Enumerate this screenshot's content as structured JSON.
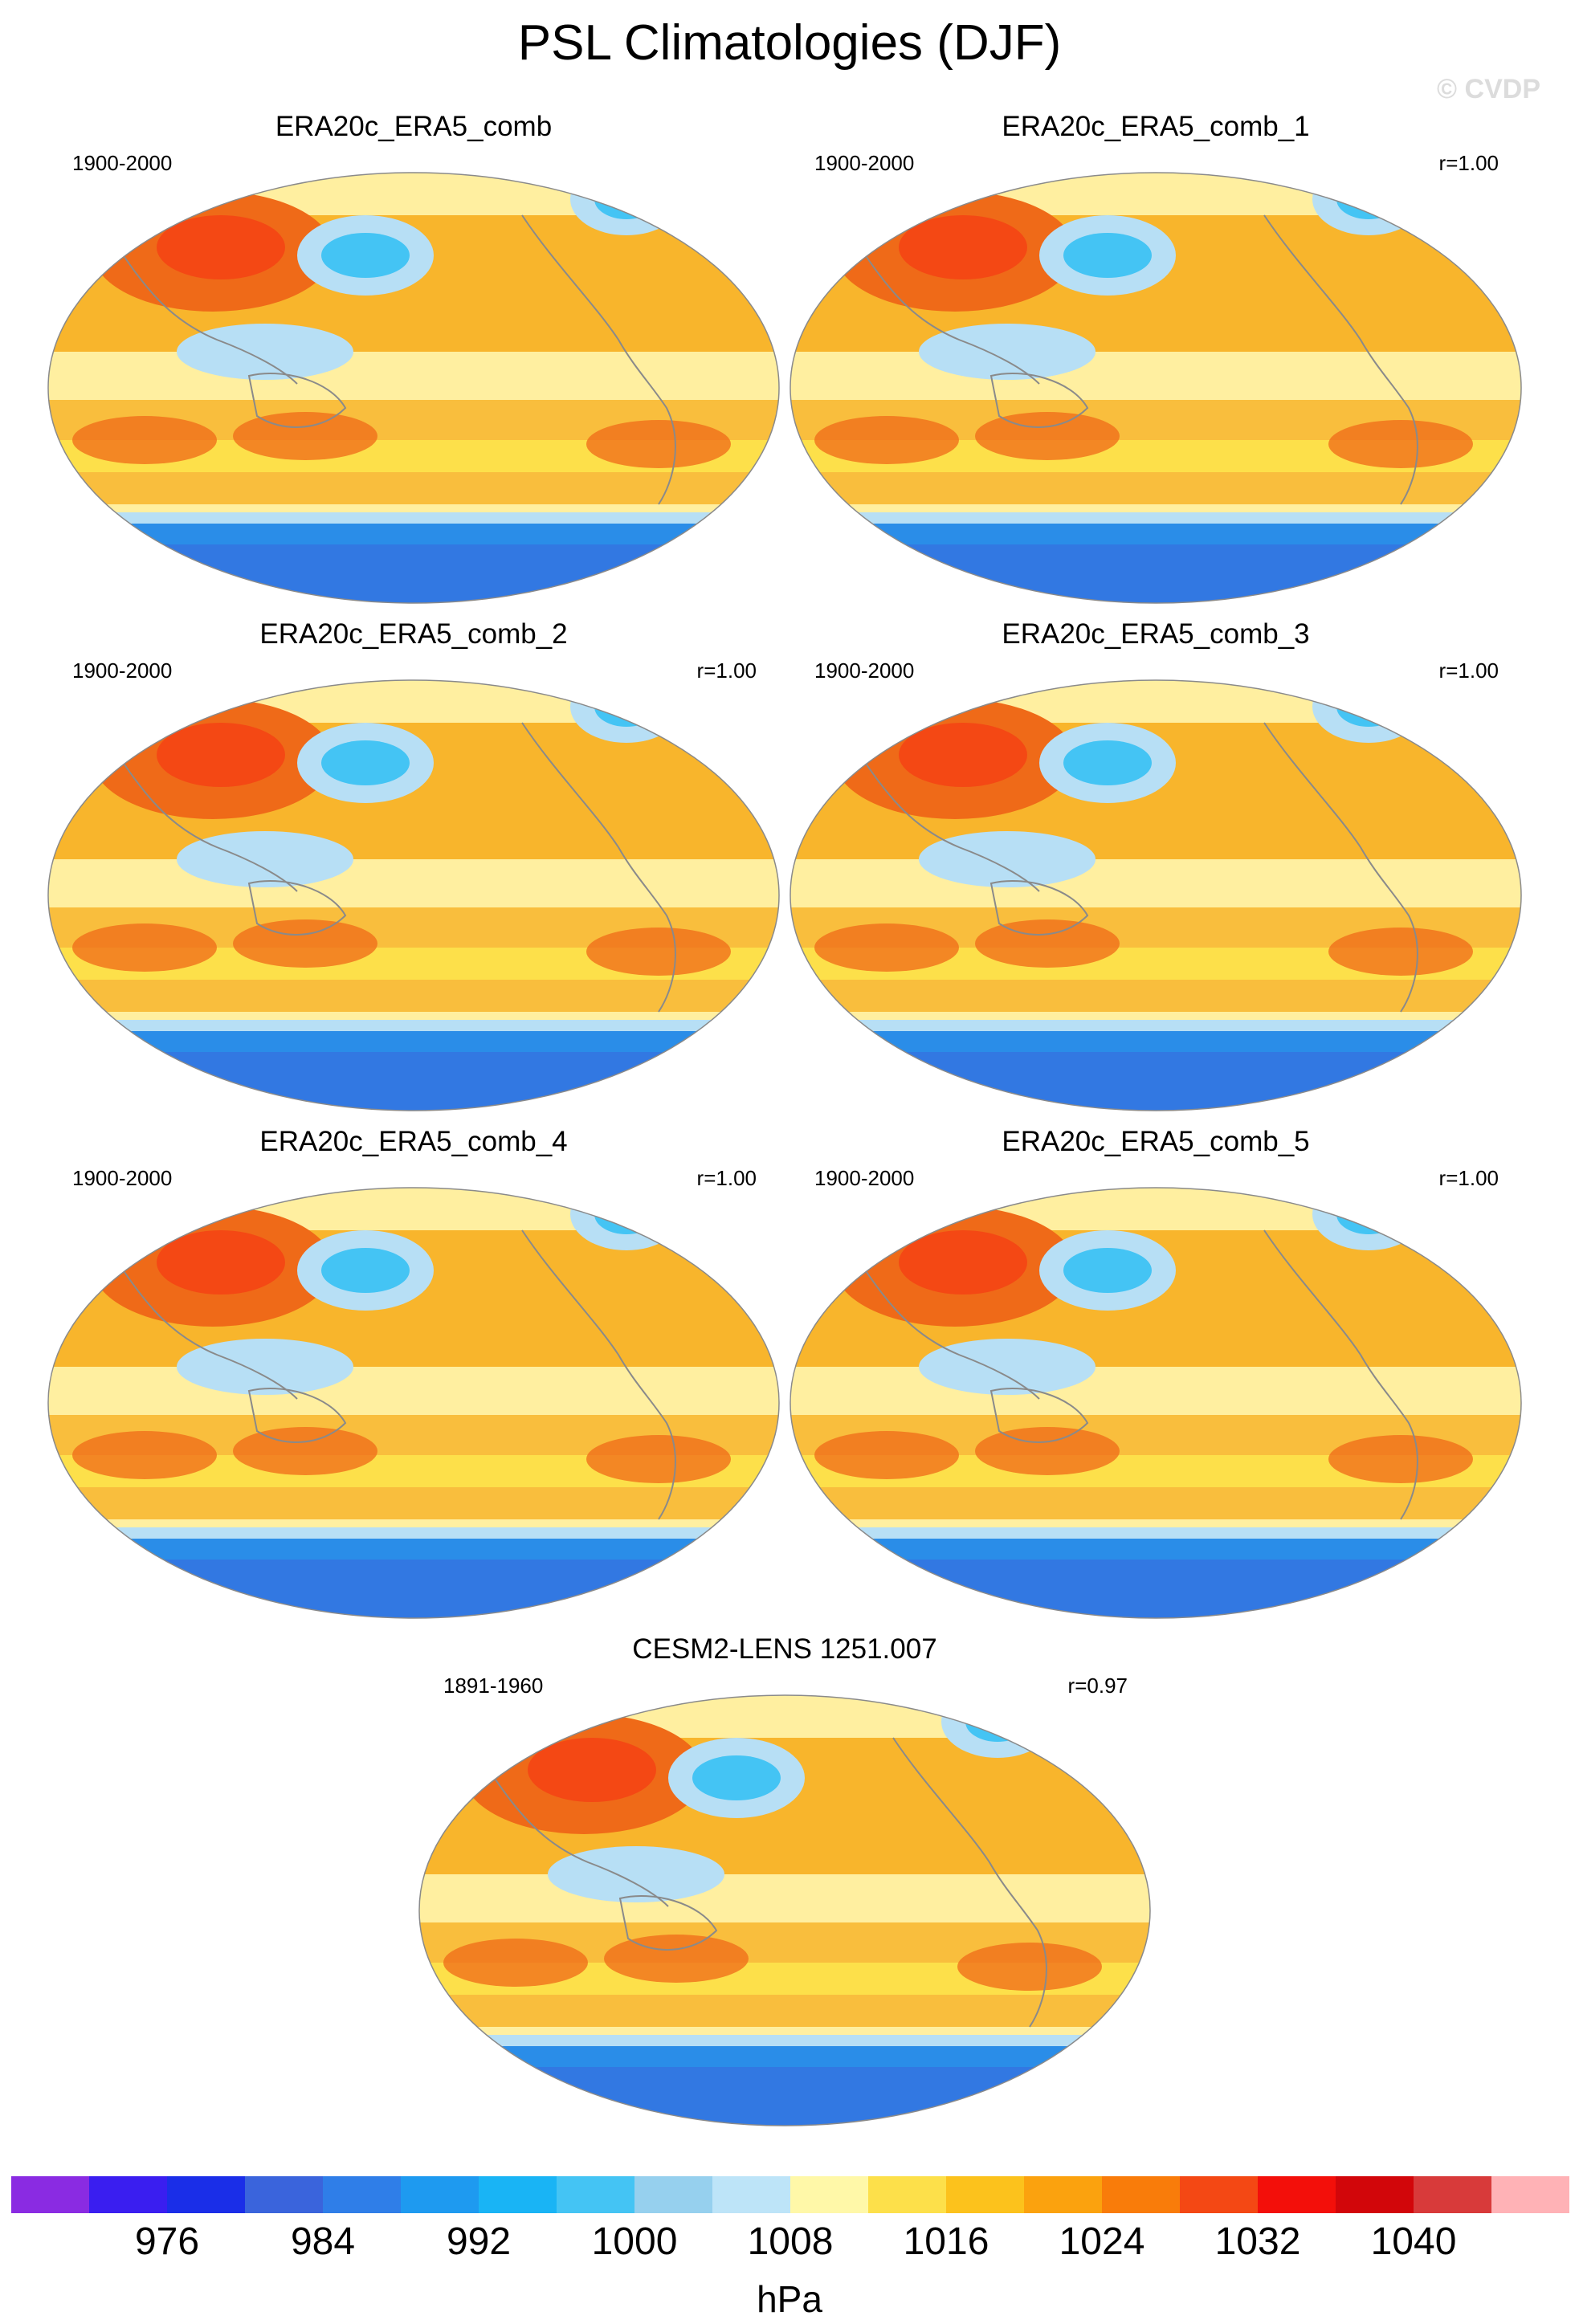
{
  "page_title": "PSL Climatologies (DJF)",
  "watermark": "© CVDP",
  "colors": {
    "ocean_low": "#b7dff5",
    "ocean_mid": "#ffefa0",
    "high": "#f8b52c",
    "very_high": "#ef6a18",
    "antarctic": "#2a8de8",
    "coast": "#8a8a8a"
  },
  "panels": [
    {
      "title": "ERA20c_ERA5_comb",
      "period": "1900-2000",
      "corr": ""
    },
    {
      "title": "ERA20c_ERA5_comb_1",
      "period": "1900-2000",
      "corr": "r=1.00"
    },
    {
      "title": "ERA20c_ERA5_comb_2",
      "period": "1900-2000",
      "corr": "r=1.00"
    },
    {
      "title": "ERA20c_ERA5_comb_3",
      "period": "1900-2000",
      "corr": "r=1.00"
    },
    {
      "title": "ERA20c_ERA5_comb_4",
      "period": "1900-2000",
      "corr": "r=1.00"
    },
    {
      "title": "ERA20c_ERA5_comb_5",
      "period": "1900-2000",
      "corr": "r=1.00"
    },
    {
      "title": "CESM2-LENS 1251.007",
      "period": "1891-1960",
      "corr": "r=0.97"
    }
  ],
  "colorbar": {
    "units": "hPa",
    "tick_labels": [
      "976",
      "984",
      "992",
      "1000",
      "1008",
      "1016",
      "1024",
      "1032",
      "1040"
    ],
    "colors": [
      "#8a2be2",
      "#3a1ef0",
      "#1a2ee8",
      "#3a64dc",
      "#2f7ee8",
      "#1e9af0",
      "#19b4f5",
      "#44c4f4",
      "#96d0ee",
      "#bde4f8",
      "#fff8a8",
      "#fde04a",
      "#fcc21c",
      "#fba20e",
      "#f97c0a",
      "#f44814",
      "#f30f0a",
      "#d2060a",
      "#d83a3a",
      "#ffb2b6"
    ]
  }
}
